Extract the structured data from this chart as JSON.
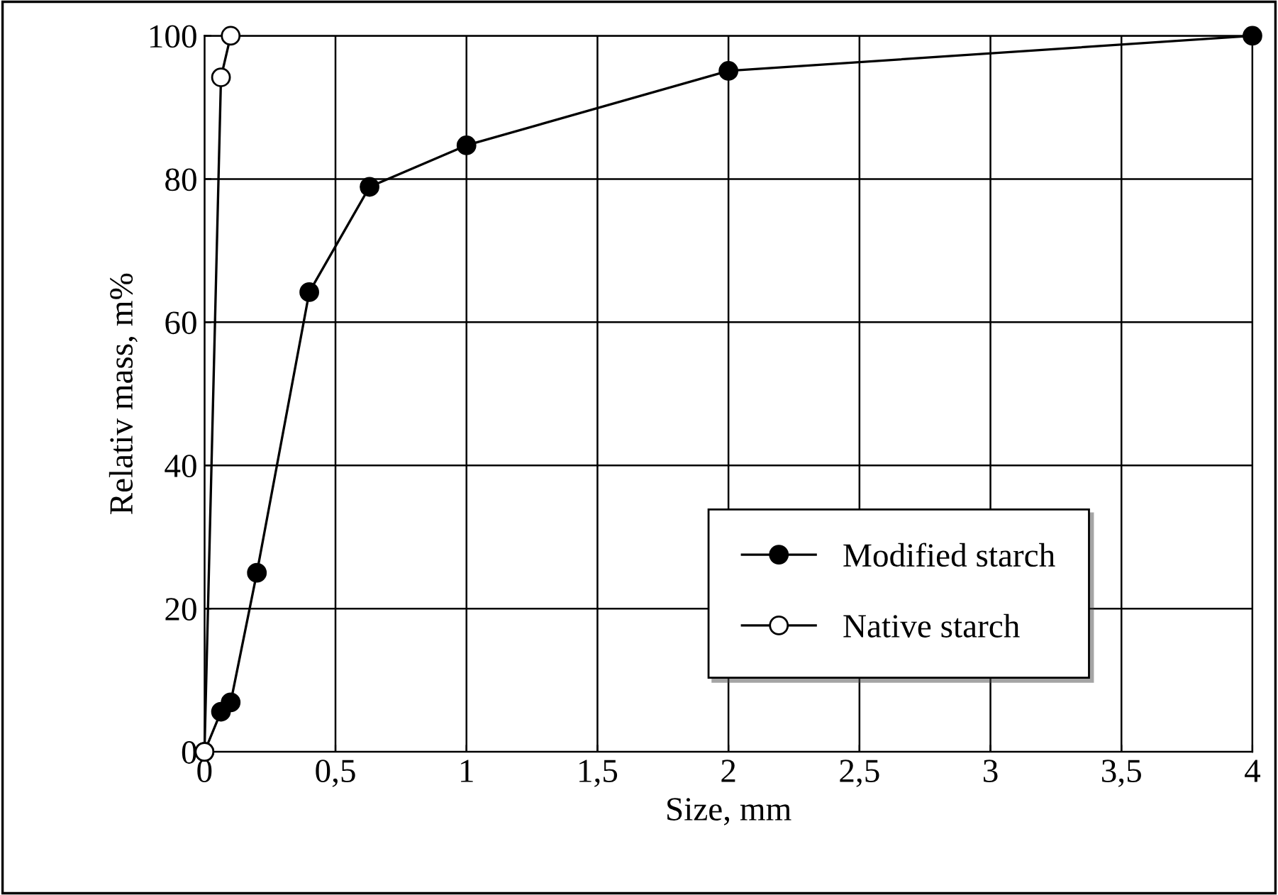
{
  "chart_data": {
    "type": "line",
    "xlabel": "Size, mm",
    "ylabel": "Relativ mass, m%",
    "xlim": [
      0,
      4
    ],
    "ylim": [
      0,
      100
    ],
    "xticks": [
      0,
      {
        "value": 0.5,
        "label": "0,5"
      },
      1,
      {
        "value": 1.5,
        "label": "1,5"
      },
      2,
      {
        "value": 2.5,
        "label": "2,5"
      },
      3,
      {
        "value": 3.5,
        "label": "3,5"
      },
      4
    ],
    "yticks": [
      0,
      20,
      40,
      60,
      80,
      100
    ],
    "grid": true,
    "legend": "bottom right",
    "marker": "circle",
    "line_style": "solid",
    "series": [
      {
        "name": "Modified starch",
        "color": "#000000",
        "x": [
          0,
          0.063,
          0.1,
          0.2,
          0.4,
          0.63,
          1,
          2,
          4
        ],
        "values": [
          0,
          5.6,
          6.9,
          25,
          64.2,
          78.9,
          84.7,
          95.1,
          100
        ]
      },
      {
        "name": "Native starch",
        "color": "#ffffff",
        "x": [
          0,
          0.063,
          0.1
        ],
        "values": [
          0,
          94.2,
          100
        ]
      }
    ]
  }
}
